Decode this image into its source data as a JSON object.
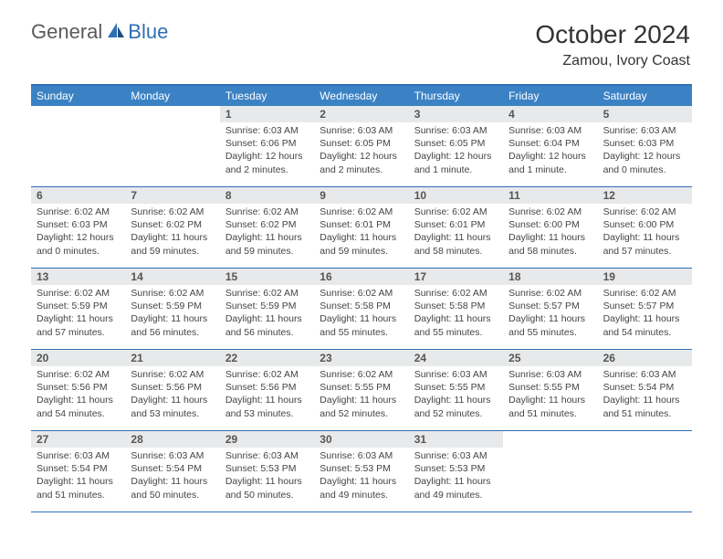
{
  "logo": {
    "part1": "General",
    "part2": "Blue"
  },
  "title": "October 2024",
  "location": "Zamou, Ivory Coast",
  "colors": {
    "header_bar": "#3b82c4",
    "border": "#2f6fb3",
    "daynum_bg": "#e8e9ea",
    "text": "#444444",
    "logo_gray": "#5a5a5a",
    "logo_blue": "#2f6fb3"
  },
  "weekdays": [
    "Sunday",
    "Monday",
    "Tuesday",
    "Wednesday",
    "Thursday",
    "Friday",
    "Saturday"
  ],
  "weeks": [
    [
      null,
      null,
      {
        "n": "1",
        "sr": "6:03 AM",
        "ss": "6:06 PM",
        "dl": "12 hours and 2 minutes."
      },
      {
        "n": "2",
        "sr": "6:03 AM",
        "ss": "6:05 PM",
        "dl": "12 hours and 2 minutes."
      },
      {
        "n": "3",
        "sr": "6:03 AM",
        "ss": "6:05 PM",
        "dl": "12 hours and 1 minute."
      },
      {
        "n": "4",
        "sr": "6:03 AM",
        "ss": "6:04 PM",
        "dl": "12 hours and 1 minute."
      },
      {
        "n": "5",
        "sr": "6:03 AM",
        "ss": "6:03 PM",
        "dl": "12 hours and 0 minutes."
      }
    ],
    [
      {
        "n": "6",
        "sr": "6:02 AM",
        "ss": "6:03 PM",
        "dl": "12 hours and 0 minutes."
      },
      {
        "n": "7",
        "sr": "6:02 AM",
        "ss": "6:02 PM",
        "dl": "11 hours and 59 minutes."
      },
      {
        "n": "8",
        "sr": "6:02 AM",
        "ss": "6:02 PM",
        "dl": "11 hours and 59 minutes."
      },
      {
        "n": "9",
        "sr": "6:02 AM",
        "ss": "6:01 PM",
        "dl": "11 hours and 59 minutes."
      },
      {
        "n": "10",
        "sr": "6:02 AM",
        "ss": "6:01 PM",
        "dl": "11 hours and 58 minutes."
      },
      {
        "n": "11",
        "sr": "6:02 AM",
        "ss": "6:00 PM",
        "dl": "11 hours and 58 minutes."
      },
      {
        "n": "12",
        "sr": "6:02 AM",
        "ss": "6:00 PM",
        "dl": "11 hours and 57 minutes."
      }
    ],
    [
      {
        "n": "13",
        "sr": "6:02 AM",
        "ss": "5:59 PM",
        "dl": "11 hours and 57 minutes."
      },
      {
        "n": "14",
        "sr": "6:02 AM",
        "ss": "5:59 PM",
        "dl": "11 hours and 56 minutes."
      },
      {
        "n": "15",
        "sr": "6:02 AM",
        "ss": "5:59 PM",
        "dl": "11 hours and 56 minutes."
      },
      {
        "n": "16",
        "sr": "6:02 AM",
        "ss": "5:58 PM",
        "dl": "11 hours and 55 minutes."
      },
      {
        "n": "17",
        "sr": "6:02 AM",
        "ss": "5:58 PM",
        "dl": "11 hours and 55 minutes."
      },
      {
        "n": "18",
        "sr": "6:02 AM",
        "ss": "5:57 PM",
        "dl": "11 hours and 55 minutes."
      },
      {
        "n": "19",
        "sr": "6:02 AM",
        "ss": "5:57 PM",
        "dl": "11 hours and 54 minutes."
      }
    ],
    [
      {
        "n": "20",
        "sr": "6:02 AM",
        "ss": "5:56 PM",
        "dl": "11 hours and 54 minutes."
      },
      {
        "n": "21",
        "sr": "6:02 AM",
        "ss": "5:56 PM",
        "dl": "11 hours and 53 minutes."
      },
      {
        "n": "22",
        "sr": "6:02 AM",
        "ss": "5:56 PM",
        "dl": "11 hours and 53 minutes."
      },
      {
        "n": "23",
        "sr": "6:02 AM",
        "ss": "5:55 PM",
        "dl": "11 hours and 52 minutes."
      },
      {
        "n": "24",
        "sr": "6:03 AM",
        "ss": "5:55 PM",
        "dl": "11 hours and 52 minutes."
      },
      {
        "n": "25",
        "sr": "6:03 AM",
        "ss": "5:55 PM",
        "dl": "11 hours and 51 minutes."
      },
      {
        "n": "26",
        "sr": "6:03 AM",
        "ss": "5:54 PM",
        "dl": "11 hours and 51 minutes."
      }
    ],
    [
      {
        "n": "27",
        "sr": "6:03 AM",
        "ss": "5:54 PM",
        "dl": "11 hours and 51 minutes."
      },
      {
        "n": "28",
        "sr": "6:03 AM",
        "ss": "5:54 PM",
        "dl": "11 hours and 50 minutes."
      },
      {
        "n": "29",
        "sr": "6:03 AM",
        "ss": "5:53 PM",
        "dl": "11 hours and 50 minutes."
      },
      {
        "n": "30",
        "sr": "6:03 AM",
        "ss": "5:53 PM",
        "dl": "11 hours and 49 minutes."
      },
      {
        "n": "31",
        "sr": "6:03 AM",
        "ss": "5:53 PM",
        "dl": "11 hours and 49 minutes."
      },
      null,
      null
    ]
  ],
  "labels": {
    "sunrise": "Sunrise:",
    "sunset": "Sunset:",
    "daylight": "Daylight:"
  }
}
